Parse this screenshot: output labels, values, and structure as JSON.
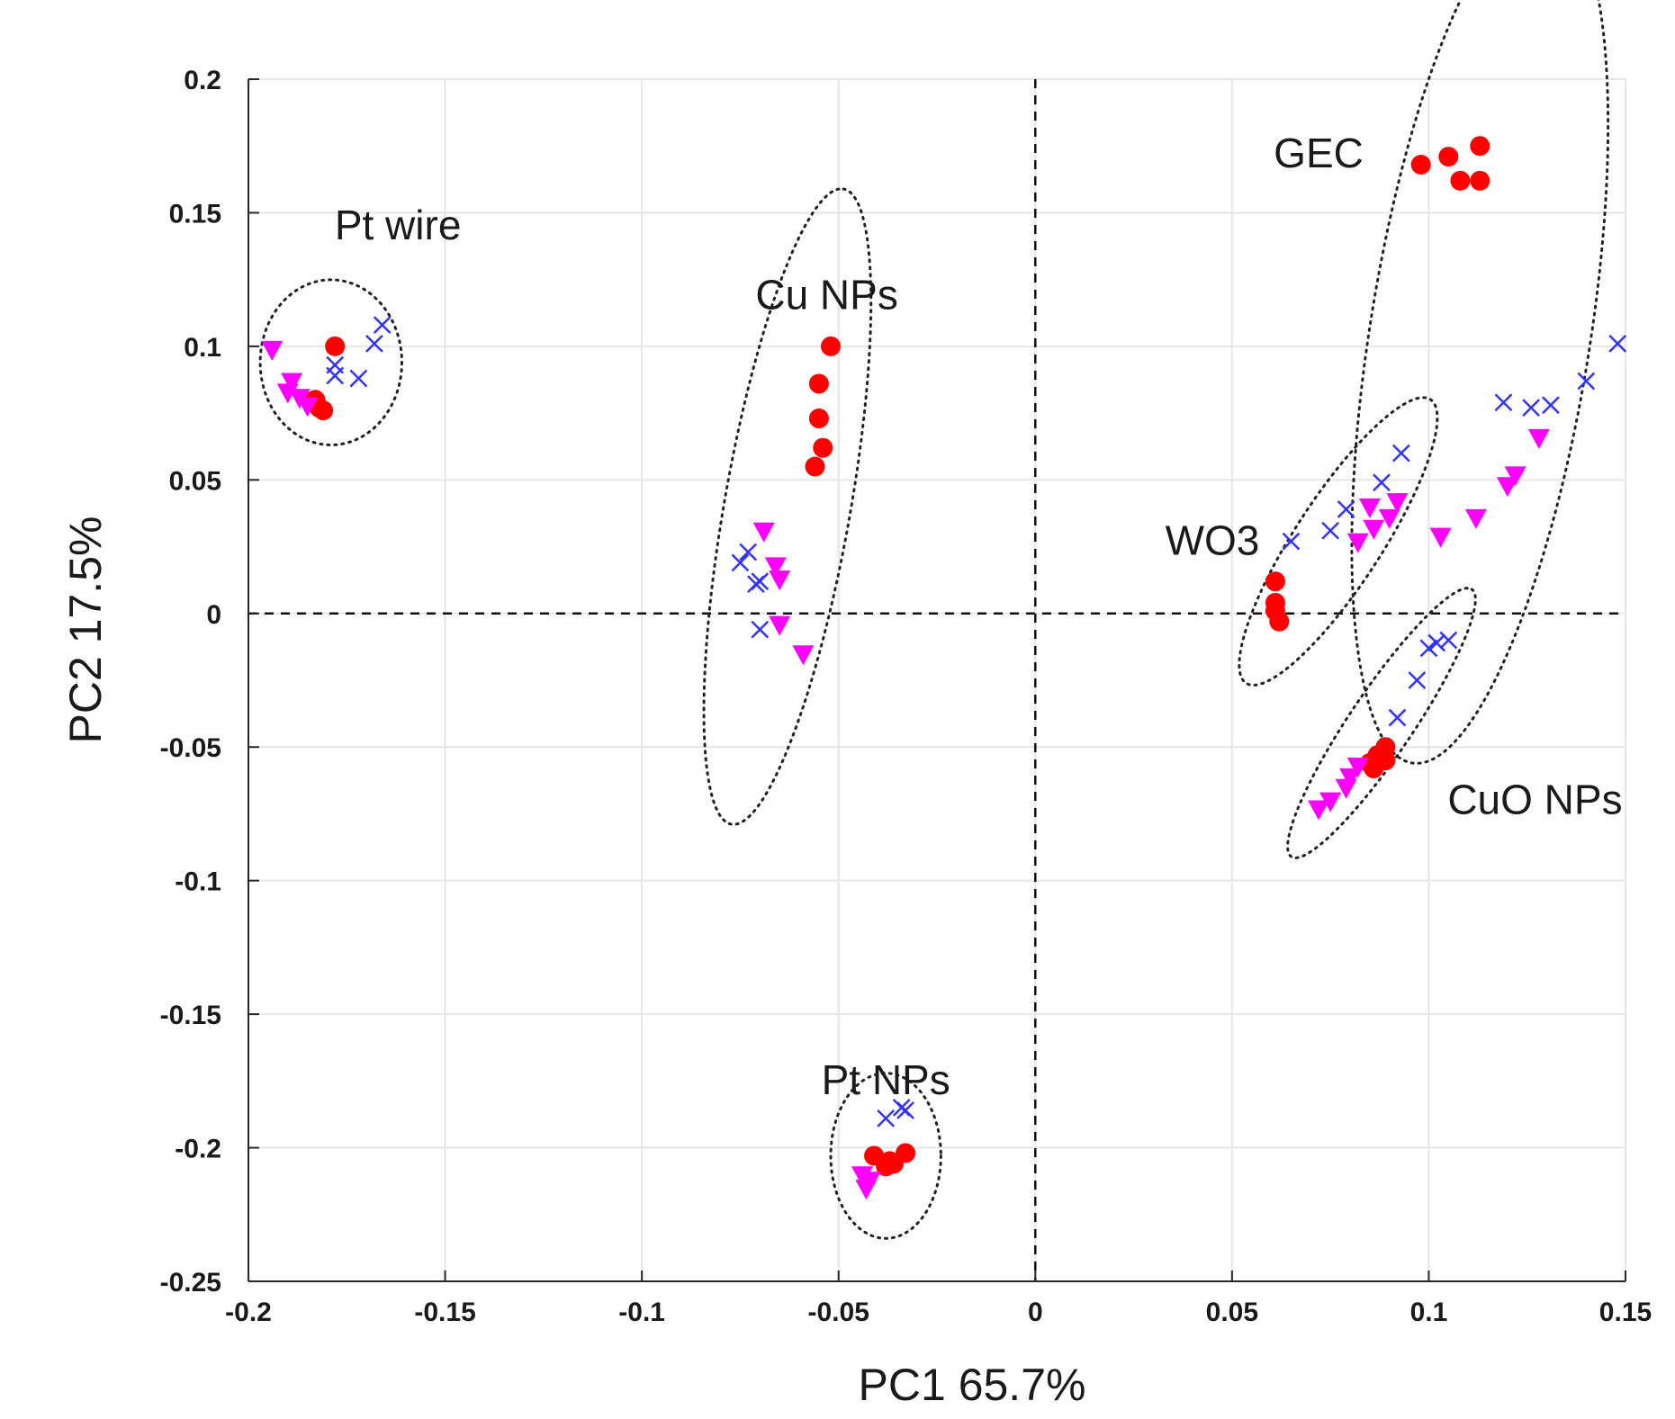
{
  "chart_data": {
    "type": "scatter",
    "xlabel": "PC1 65.7%",
    "ylabel": "PC2 17.5%",
    "xlim": [
      -0.2,
      0.15
    ],
    "ylim": [
      -0.25,
      0.2
    ],
    "x_ticks": [
      -0.2,
      -0.15,
      -0.1,
      -0.05,
      0,
      0.05,
      0.1,
      0.15
    ],
    "x_tick_labels": [
      "-0.2",
      "-0.15",
      "-0.1",
      "-0.05",
      "0",
      "0.05",
      "0.1",
      "0.15"
    ],
    "y_ticks": [
      -0.25,
      -0.2,
      -0.15,
      -0.1,
      -0.05,
      0,
      0.05,
      0.1,
      0.15,
      0.2
    ],
    "y_tick_labels": [
      "-0.25",
      "-0.2",
      "-0.15",
      "-0.1",
      "-0.05",
      "0",
      "0.05",
      "0.1",
      "0.15",
      "0.2"
    ],
    "grid": true,
    "zero_lines": true,
    "colors": {
      "circle": "#ff0000",
      "cross": "#3333ff",
      "triangle": "#ff00ff"
    },
    "series": [
      {
        "name": "circle",
        "marker": "circle",
        "points": [
          [
            -0.178,
            0.1
          ],
          [
            -0.183,
            0.08
          ],
          [
            -0.182,
            0.077
          ],
          [
            -0.181,
            0.076
          ],
          [
            -0.184,
            0.079
          ],
          [
            -0.052,
            0.1
          ],
          [
            -0.055,
            0.086
          ],
          [
            -0.055,
            0.073
          ],
          [
            -0.054,
            0.062
          ],
          [
            -0.056,
            0.055
          ],
          [
            0.098,
            0.168
          ],
          [
            0.105,
            0.171
          ],
          [
            0.113,
            0.175
          ],
          [
            0.108,
            0.162
          ],
          [
            0.113,
            0.162
          ],
          [
            0.061,
            0.012
          ],
          [
            0.061,
            0.004
          ],
          [
            0.061,
            0.001
          ],
          [
            0.062,
            -0.003
          ],
          [
            0.089,
            -0.05
          ],
          [
            0.087,
            -0.053
          ],
          [
            0.085,
            -0.056
          ],
          [
            0.089,
            -0.055
          ],
          [
            0.086,
            -0.058
          ],
          [
            -0.041,
            -0.203
          ],
          [
            -0.038,
            -0.207
          ],
          [
            -0.037,
            -0.205
          ],
          [
            -0.033,
            -0.202
          ],
          [
            -0.036,
            -0.206
          ]
        ]
      },
      {
        "name": "cross",
        "marker": "cross",
        "points": [
          [
            -0.178,
            0.093
          ],
          [
            -0.178,
            0.089
          ],
          [
            -0.172,
            0.088
          ],
          [
            -0.168,
            0.101
          ],
          [
            -0.166,
            0.108
          ],
          [
            -0.075,
            0.019
          ],
          [
            -0.073,
            0.023
          ],
          [
            -0.071,
            0.011
          ],
          [
            -0.07,
            0.012
          ],
          [
            -0.07,
            -0.006
          ],
          [
            0.065,
            0.027
          ],
          [
            0.075,
            0.031
          ],
          [
            0.079,
            0.039
          ],
          [
            0.088,
            0.049
          ],
          [
            0.093,
            0.06
          ],
          [
            0.119,
            0.079
          ],
          [
            0.126,
            0.077
          ],
          [
            0.131,
            0.078
          ],
          [
            0.14,
            0.087
          ],
          [
            0.148,
            0.101
          ],
          [
            0.092,
            -0.039
          ],
          [
            0.097,
            -0.025
          ],
          [
            0.1,
            -0.013
          ],
          [
            0.102,
            -0.011
          ],
          [
            0.105,
            -0.01
          ],
          [
            -0.038,
            -0.189
          ],
          [
            -0.034,
            -0.185
          ],
          [
            -0.033,
            -0.186
          ]
        ]
      },
      {
        "name": "triangle",
        "marker": "triangle",
        "points": [
          [
            -0.194,
            0.099
          ],
          [
            -0.189,
            0.087
          ],
          [
            -0.19,
            0.083
          ],
          [
            -0.187,
            0.081
          ],
          [
            -0.185,
            0.078
          ],
          [
            -0.069,
            0.031
          ],
          [
            -0.066,
            0.018
          ],
          [
            -0.065,
            0.013
          ],
          [
            -0.065,
            -0.004
          ],
          [
            -0.059,
            -0.015
          ],
          [
            0.082,
            0.027
          ],
          [
            0.085,
            0.04
          ],
          [
            0.086,
            0.032
          ],
          [
            0.09,
            0.036
          ],
          [
            0.092,
            0.042
          ],
          [
            0.103,
            0.029
          ],
          [
            0.112,
            0.036
          ],
          [
            0.12,
            0.048
          ],
          [
            0.122,
            0.052
          ],
          [
            0.128,
            0.066
          ],
          [
            0.072,
            -0.073
          ],
          [
            0.075,
            -0.07
          ],
          [
            0.079,
            -0.065
          ],
          [
            0.08,
            -0.061
          ],
          [
            0.082,
            -0.057
          ],
          [
            -0.044,
            -0.21
          ],
          [
            -0.043,
            -0.215
          ],
          [
            -0.042,
            -0.212
          ]
        ]
      }
    ],
    "groups": [
      {
        "label": "Pt wire",
        "label_at": [
          -0.162,
          0.14
        ],
        "cx": -0.179,
        "cy": 0.094,
        "rx": 0.018,
        "ry": 0.021,
        "angle": 0
      },
      {
        "label": "Cu NPs",
        "label_at": [
          -0.053,
          0.114
        ],
        "cx": -0.063,
        "cy": 0.04,
        "rx": 0.082,
        "ry": 0.016,
        "angle": -80
      },
      {
        "label": "GEC",
        "label_at": [
          0.072,
          0.167
        ],
        "cx": 0.113,
        "cy": 0.104,
        "rx": 0.11,
        "ry": 0.028,
        "angle": -81
      },
      {
        "label": "WO3",
        "label_at": [
          0.045,
          0.022
        ],
        "cx": 0.077,
        "cy": 0.027,
        "rx": 0.043,
        "ry": 0.011,
        "angle": -57
      },
      {
        "label": "CuO NPs",
        "label_at": [
          0.127,
          -0.075
        ],
        "cx": 0.088,
        "cy": -0.041,
        "rx": 0.041,
        "ry": 0.008,
        "angle": -56
      },
      {
        "label": "Pt NPs",
        "label_at": [
          -0.038,
          -0.18
        ],
        "cx": -0.038,
        "cy": -0.203,
        "rx": 0.014,
        "ry": 0.021,
        "angle": 0
      }
    ]
  }
}
